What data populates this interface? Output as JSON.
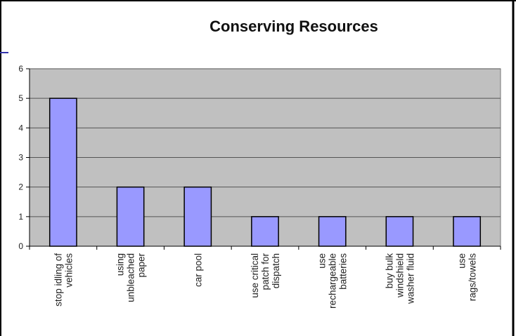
{
  "chart_data": {
    "type": "bar",
    "title": "Conserving Resources",
    "xlabel": "",
    "ylabel": "",
    "ylim": [
      0,
      6
    ],
    "yticks": [
      "0",
      "1",
      "2",
      "3",
      "4",
      "5",
      "6"
    ],
    "grid": true,
    "legend": "none",
    "categories": [
      [
        "stop idling of",
        "vehicles"
      ],
      [
        "using",
        "unbleached",
        "paper"
      ],
      [
        "car pool"
      ],
      [
        "use critical",
        "patch for",
        "dispatch"
      ],
      [
        "use",
        "rechargeable",
        "batteries"
      ],
      [
        "buy bulk",
        "windshield",
        "washer fluid"
      ],
      [
        "use",
        "rags/towels"
      ]
    ],
    "values": [
      5,
      2,
      2,
      1,
      1,
      1,
      1
    ],
    "colors": {
      "bar": "#9999ff",
      "bar_stroke": "#000000",
      "plot_bg": "#c0c0c0",
      "grid": "#555555",
      "accent_line": "#3333aa"
    }
  }
}
